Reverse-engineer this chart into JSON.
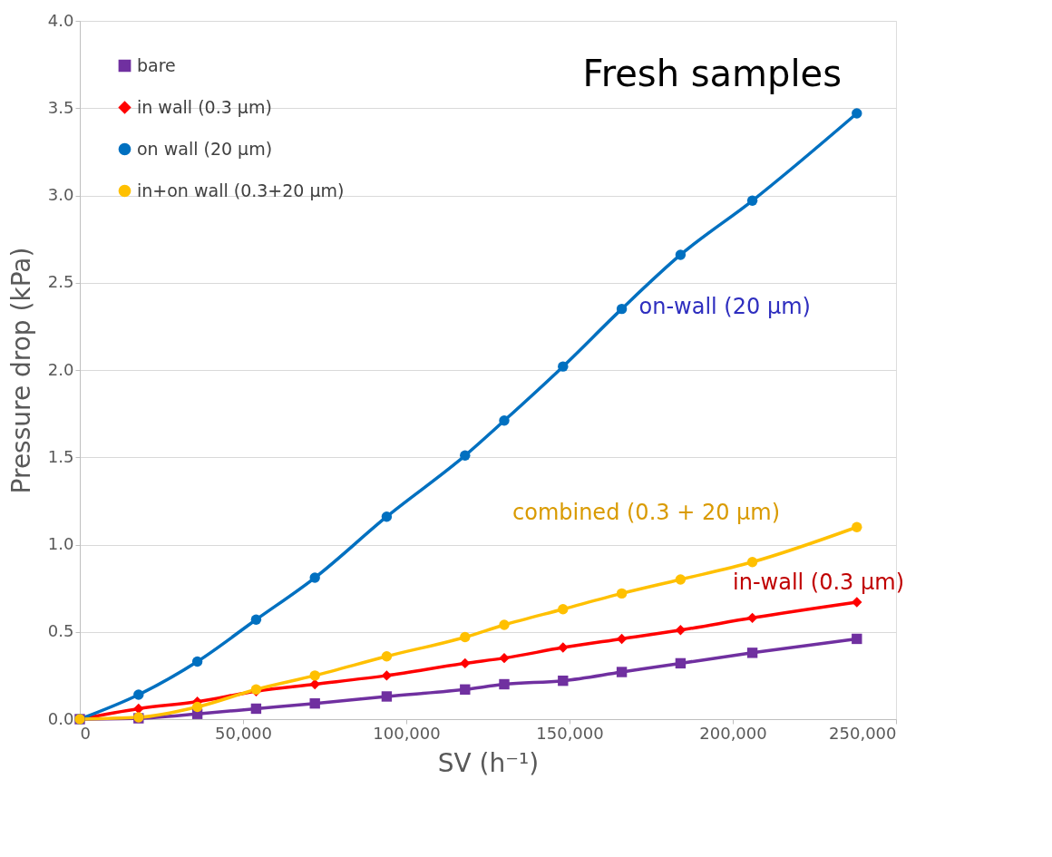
{
  "chart_data": {
    "type": "line",
    "title": "Fresh samples",
    "xlabel": "SV (h⁻¹)",
    "ylabel": "Pressure drop (kPa)",
    "x": [
      0,
      18000,
      36000,
      54000,
      72000,
      94000,
      118000,
      130000,
      148000,
      166000,
      184000,
      206000,
      238000
    ],
    "series": [
      {
        "name": "bare",
        "color": "#7030a0",
        "marker": "square",
        "values": [
          0,
          0.005,
          0.03,
          0.06,
          0.09,
          0.13,
          0.17,
          0.2,
          0.22,
          0.27,
          0.32,
          0.38,
          0.46
        ]
      },
      {
        "name": "in wall (0.3 µm)",
        "color": "#ff0000",
        "marker": "diamond",
        "values": [
          0,
          0.06,
          0.1,
          0.16,
          0.2,
          0.25,
          0.32,
          0.35,
          0.41,
          0.46,
          0.51,
          0.58,
          0.67
        ]
      },
      {
        "name": "on wall (20 µm)",
        "color": "#0070c0",
        "marker": "circle",
        "values": [
          0,
          0.14,
          0.33,
          0.57,
          0.81,
          1.16,
          1.51,
          1.71,
          2.02,
          2.35,
          2.66,
          2.97,
          3.47
        ]
      },
      {
        "name": "in+on wall (0.3+20 µm)",
        "color": "#ffc000",
        "marker": "circle",
        "values": [
          0,
          0.01,
          0.07,
          0.17,
          0.25,
          0.36,
          0.47,
          0.54,
          0.63,
          0.72,
          0.8,
          0.9,
          1.1
        ]
      }
    ],
    "annotations": [
      "on-wall (20 µm)",
      "combined (0.3 + 20 µm)",
      "in-wall (0.3 µm)"
    ],
    "xlim": [
      0,
      250000
    ],
    "xticks": [
      0,
      {
        "value": 50000,
        "label": "50,000"
      },
      {
        "value": 100000,
        "label": "100,000"
      },
      {
        "value": 150000,
        "label": "150,000"
      },
      {
        "value": 200000,
        "label": "200,000"
      },
      {
        "value": 250000,
        "label": "250,000"
      }
    ],
    "ylim": [
      0,
      4
    ],
    "yticks": [
      {
        "value": 0,
        "label": "0.0"
      },
      {
        "value": 0.5,
        "label": "0.5"
      },
      {
        "value": 1,
        "label": "1.0"
      },
      {
        "value": 1.5,
        "label": "1.5"
      },
      {
        "value": 2,
        "label": "2.0"
      },
      {
        "value": 2.5,
        "label": "2.5"
      },
      {
        "value": 3,
        "label": "3.0"
      },
      {
        "value": 3.5,
        "label": "3.5"
      },
      {
        "value": 4,
        "label": "4.0"
      }
    ],
    "grid": "y",
    "legend": "top left",
    "line_style": "solid"
  }
}
